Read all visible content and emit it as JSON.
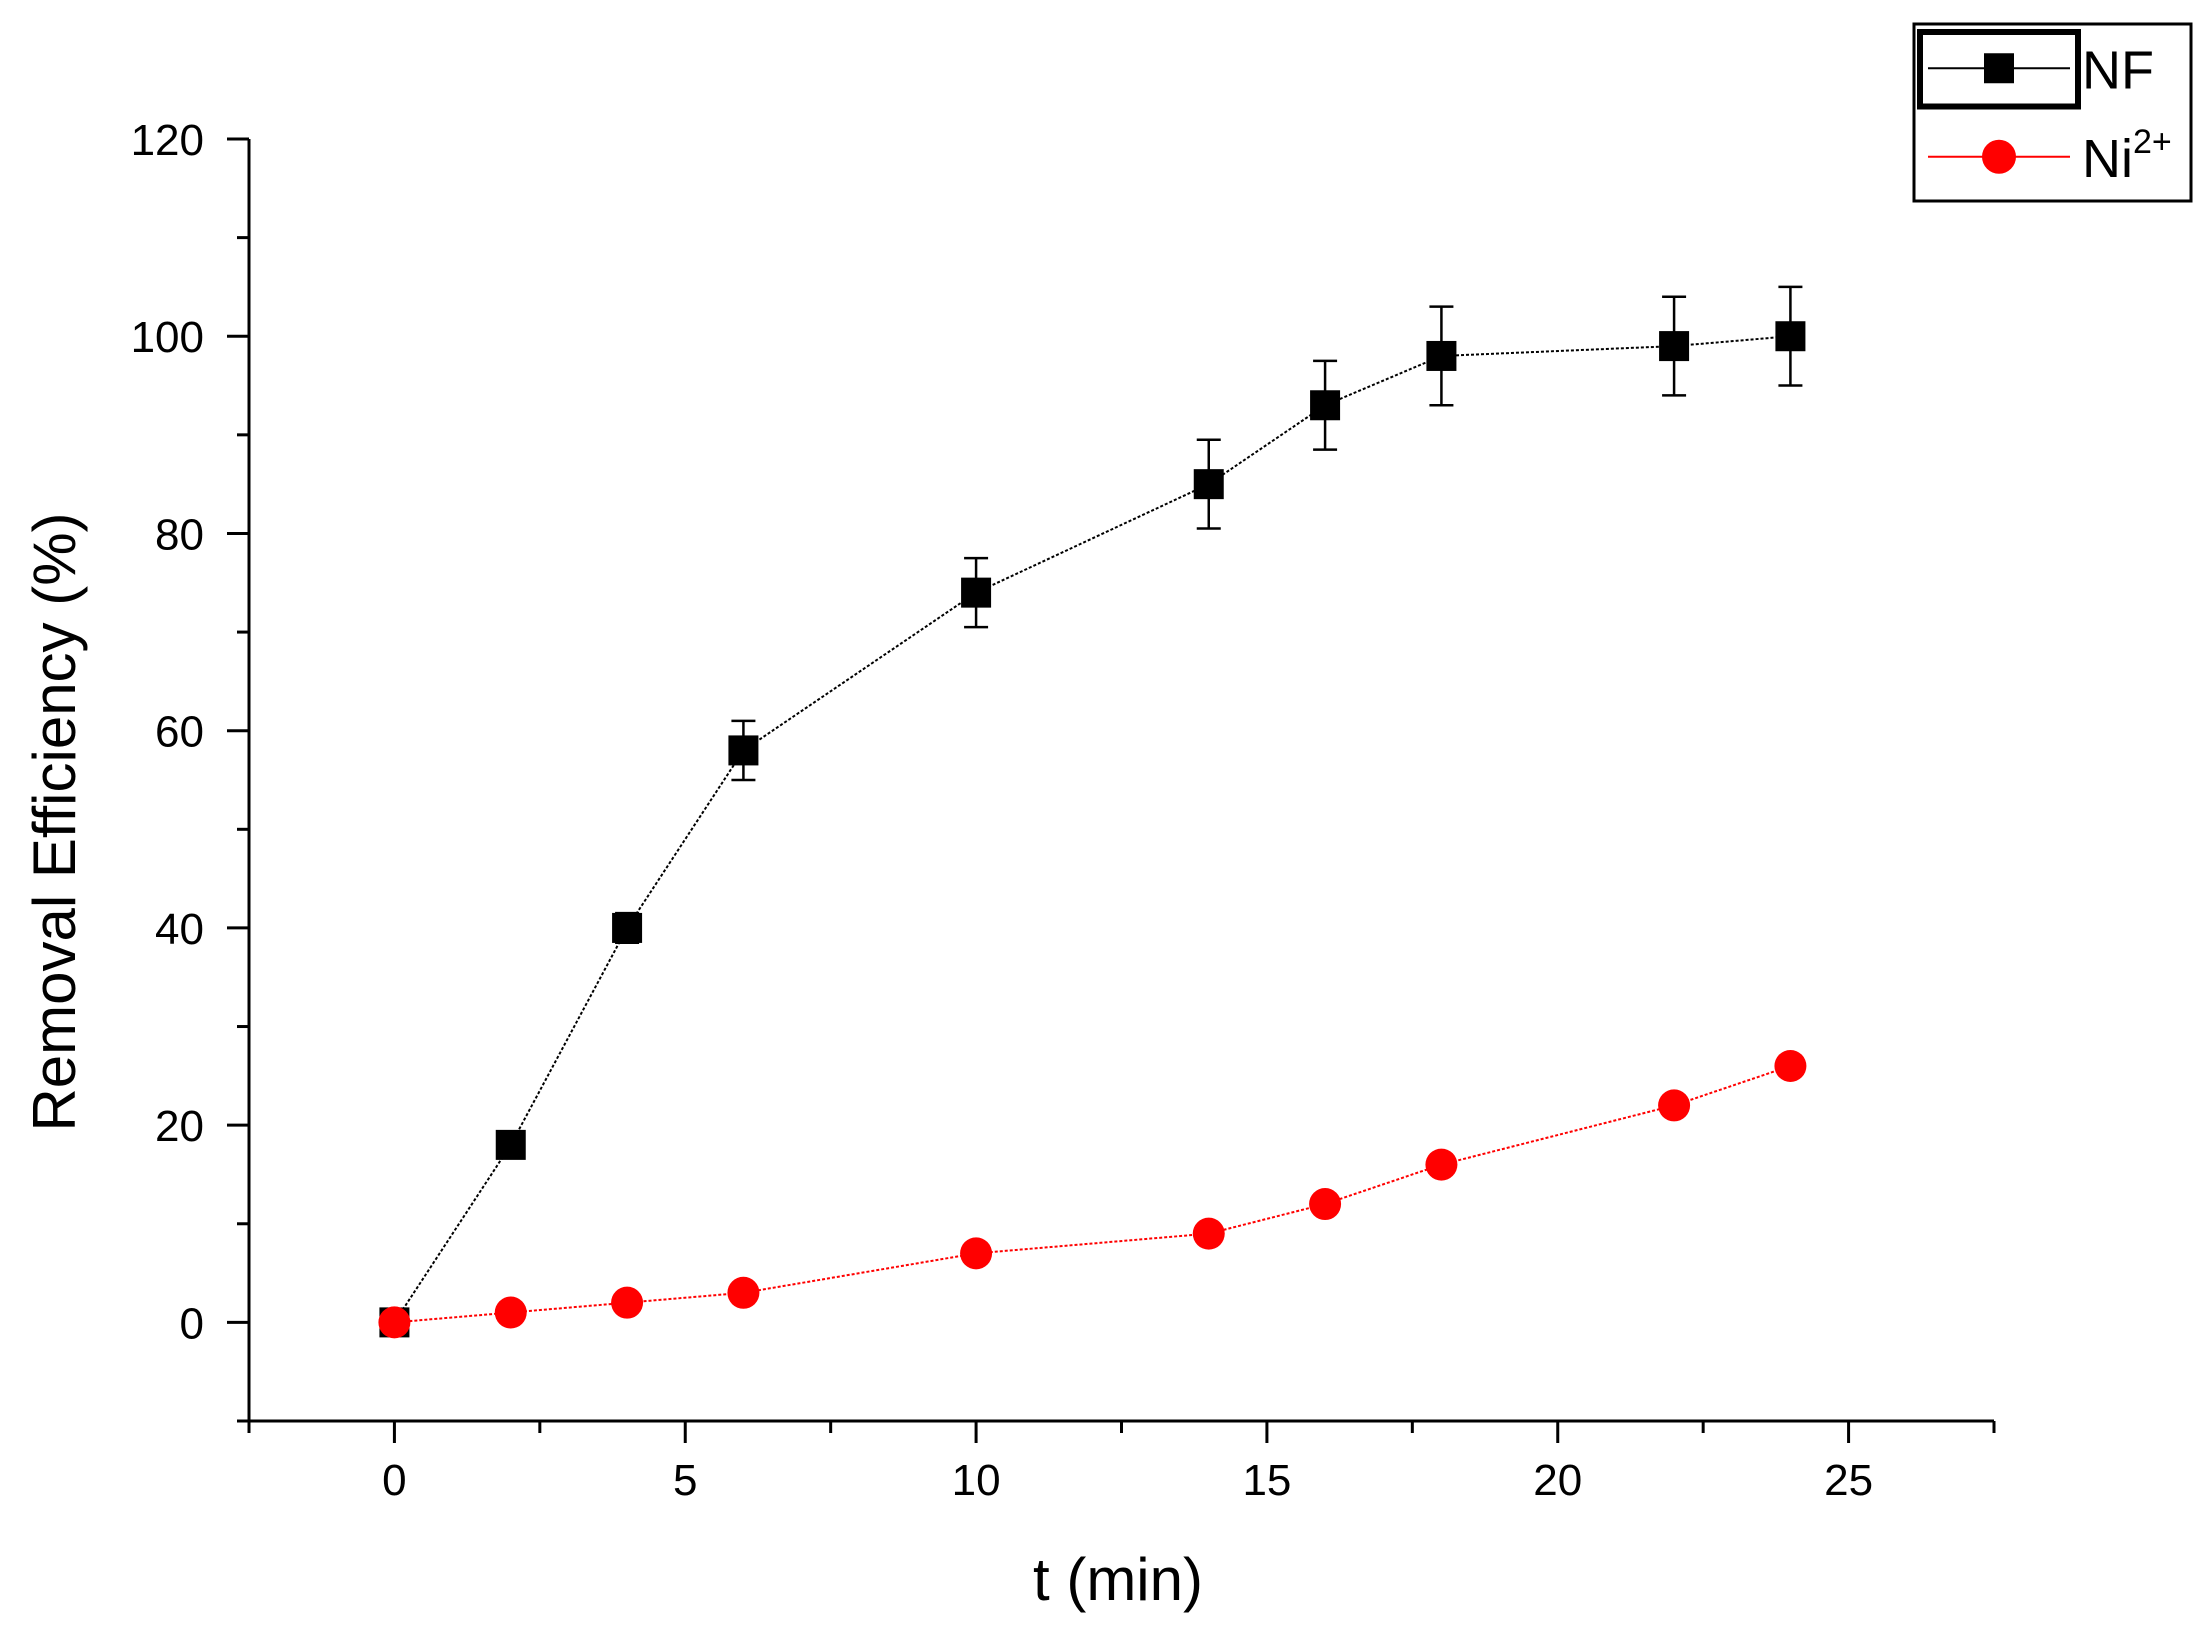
{
  "chart_data": {
    "type": "line",
    "title": "",
    "xlabel": "t (min)",
    "ylabel": "Removal Efficiency (%)",
    "xlim": [
      -2.5,
      27.5
    ],
    "ylim": [
      -10,
      120
    ],
    "x_ticks": [
      0,
      5,
      10,
      15,
      20,
      25
    ],
    "y_ticks": [
      0,
      20,
      40,
      60,
      80,
      100,
      120
    ],
    "x_tick_labels": [
      "0",
      "5",
      "10",
      "15",
      "20",
      "25"
    ],
    "y_tick_labels": [
      "0",
      "20",
      "40",
      "60",
      "80",
      "100",
      "120"
    ],
    "grid": false,
    "legend_position": "top-right",
    "series": [
      {
        "name": "NF",
        "legend_base": "NF",
        "legend_sup": "",
        "marker": "square",
        "color": "#000000",
        "x": [
          0,
          2,
          4,
          6,
          10,
          14,
          16,
          18,
          22,
          24
        ],
        "y": [
          0,
          18,
          40,
          58,
          74,
          85,
          93,
          98,
          99,
          100
        ],
        "error": [
          0,
          0,
          1.5,
          3,
          3.5,
          4.5,
          4.5,
          5,
          5,
          5
        ]
      },
      {
        "name": "Ni2+",
        "legend_base": "Ni",
        "legend_sup": "2+",
        "marker": "circle",
        "color": "#ff0000",
        "x": [
          0,
          2,
          4,
          6,
          10,
          14,
          16,
          18,
          22,
          24
        ],
        "y": [
          0,
          1,
          2,
          3,
          7,
          9,
          12,
          16,
          22,
          26
        ],
        "error": []
      }
    ]
  }
}
